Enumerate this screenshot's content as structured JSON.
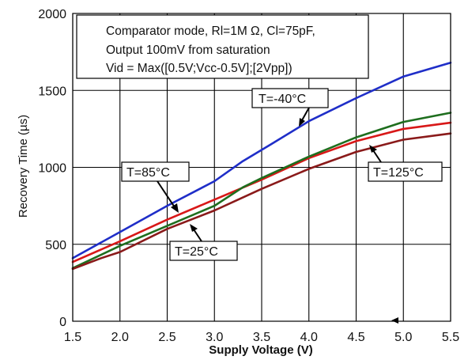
{
  "chart_data": {
    "type": "line",
    "xlabel": "Supply Voltage (V)",
    "ylabel": "Recovery Time (µs)",
    "xlim": [
      1.5,
      5.5
    ],
    "ylim": [
      0,
      2000
    ],
    "grid": true,
    "x_ticks": [
      "1.5",
      "2.0",
      "2.5",
      "3.0",
      "3.5",
      "4.0",
      "4.5",
      "5.0",
      "5.5"
    ],
    "y_ticks": [
      "0",
      "500",
      "1000",
      "1500",
      "2000"
    ],
    "annotation_lines": [
      "Comparator mode, Rl=1M Ω, Cl=75pF,",
      "Output 100mV from saturation",
      "Vid = Max([0.5V;Vcc-0.5V];[2Vpp])"
    ],
    "series": [
      {
        "name": "T=-40°C",
        "color": "#1f2ec8",
        "x": [
          1.5,
          2.0,
          2.5,
          3.0,
          3.3,
          3.6,
          4.0,
          4.5,
          5.0,
          5.5
        ],
        "y": [
          410,
          580,
          750,
          910,
          1040,
          1150,
          1300,
          1450,
          1590,
          1680
        ]
      },
      {
        "name": "T=85°C",
        "color": "#d81818",
        "x": [
          1.5,
          2.0,
          2.5,
          3.0,
          3.5,
          4.0,
          4.5,
          5.0,
          5.5
        ],
        "y": [
          385,
          520,
          660,
          790,
          920,
          1060,
          1170,
          1250,
          1290
        ]
      },
      {
        "name": "T=25°C",
        "color": "#1e6e1e",
        "x": [
          1.5,
          2.0,
          2.5,
          3.0,
          3.3,
          3.5,
          4.0,
          4.5,
          5.0,
          5.5
        ],
        "y": [
          345,
          490,
          620,
          750,
          870,
          930,
          1070,
          1195,
          1295,
          1355
        ]
      },
      {
        "name": "T=125°C",
        "color": "#8a1a1a",
        "x": [
          1.5,
          1.8,
          2.0,
          2.5,
          3.0,
          3.5,
          4.0,
          4.5,
          5.0,
          5.5
        ],
        "y": [
          340,
          410,
          450,
          600,
          720,
          860,
          990,
          1100,
          1180,
          1220
        ]
      }
    ]
  }
}
